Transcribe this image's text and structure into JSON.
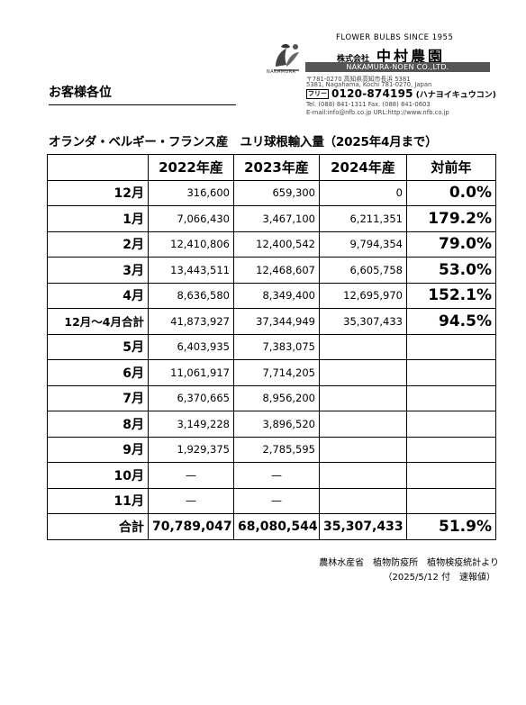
{
  "header": {
    "tagline": "FLOWER BULBS SINCE 1955",
    "company_prefix": "株式会社",
    "company_name": "中村農園",
    "company_en": "NAKAMURA-NOEN CO.,LTD.",
    "logo_text": "NAKAMURA",
    "address_jp": "〒781-0270 高知県高知市長浜 5381",
    "address_en": "5381, Nagahama, Kochi 781-0270, Japan",
    "free_dial_badge": "フリー",
    "tel_free": "0120-874195",
    "tel_free_kana": "(ハナヨイキュウコン)",
    "tel_fax": "Tel. (088) 841-1311    Fax. (088) 841-0603",
    "email_url": "E-mail:info@nfb.co.jp    URL:http://www.nfb.co.jp"
  },
  "customer": "お客様各位",
  "title": "オランダ・ベルギー・フランス産　ユリ球根輸入量（2025年4月まで）",
  "table": {
    "headers": [
      "",
      "2022年産",
      "2023年産",
      "2024年産",
      "対前年"
    ],
    "rows": [
      {
        "label": "12月",
        "y2022": "316,600",
        "y2023": "659,300",
        "y2024": "0",
        "ratio": "0.0%"
      },
      {
        "label": "1月",
        "y2022": "7,066,430",
        "y2023": "3,467,100",
        "y2024": "6,211,351",
        "ratio": "179.2%"
      },
      {
        "label": "2月",
        "y2022": "12,410,806",
        "y2023": "12,400,542",
        "y2024": "9,794,354",
        "ratio": "79.0%"
      },
      {
        "label": "3月",
        "y2022": "13,443,511",
        "y2023": "12,468,607",
        "y2024": "6,605,758",
        "ratio": "53.0%"
      },
      {
        "label": "4月",
        "y2022": "8,636,580",
        "y2023": "8,349,400",
        "y2024": "12,695,970",
        "ratio": "152.1%"
      },
      {
        "label": "12月～4月合計",
        "y2022": "41,873,927",
        "y2023": "37,344,949",
        "y2024": "35,307,433",
        "ratio": "94.5%"
      },
      {
        "label": "5月",
        "y2022": "6,403,935",
        "y2023": "7,383,075",
        "y2024": "",
        "ratio": ""
      },
      {
        "label": "6月",
        "y2022": "11,061,917",
        "y2023": "7,714,205",
        "y2024": "",
        "ratio": ""
      },
      {
        "label": "7月",
        "y2022": "6,370,665",
        "y2023": "8,956,200",
        "y2024": "",
        "ratio": ""
      },
      {
        "label": "8月",
        "y2022": "3,149,228",
        "y2023": "3,896,520",
        "y2024": "",
        "ratio": ""
      },
      {
        "label": "9月",
        "y2022": "1,929,375",
        "y2023": "2,785,595",
        "y2024": "",
        "ratio": ""
      },
      {
        "label": "10月",
        "y2022": "—",
        "y2023": "—",
        "y2024": "",
        "ratio": ""
      },
      {
        "label": "11月",
        "y2022": "—",
        "y2023": "—",
        "y2024": "",
        "ratio": ""
      }
    ],
    "total": {
      "label": "合計",
      "y2022": "70,789,047",
      "y2023": "68,080,544",
      "y2024": "35,307,433",
      "ratio": "51.9%"
    }
  },
  "footer": {
    "source": "農林水産省　植物防疫所　植物検疫統計より",
    "date": "（2025/5/12 付　速報値）"
  }
}
